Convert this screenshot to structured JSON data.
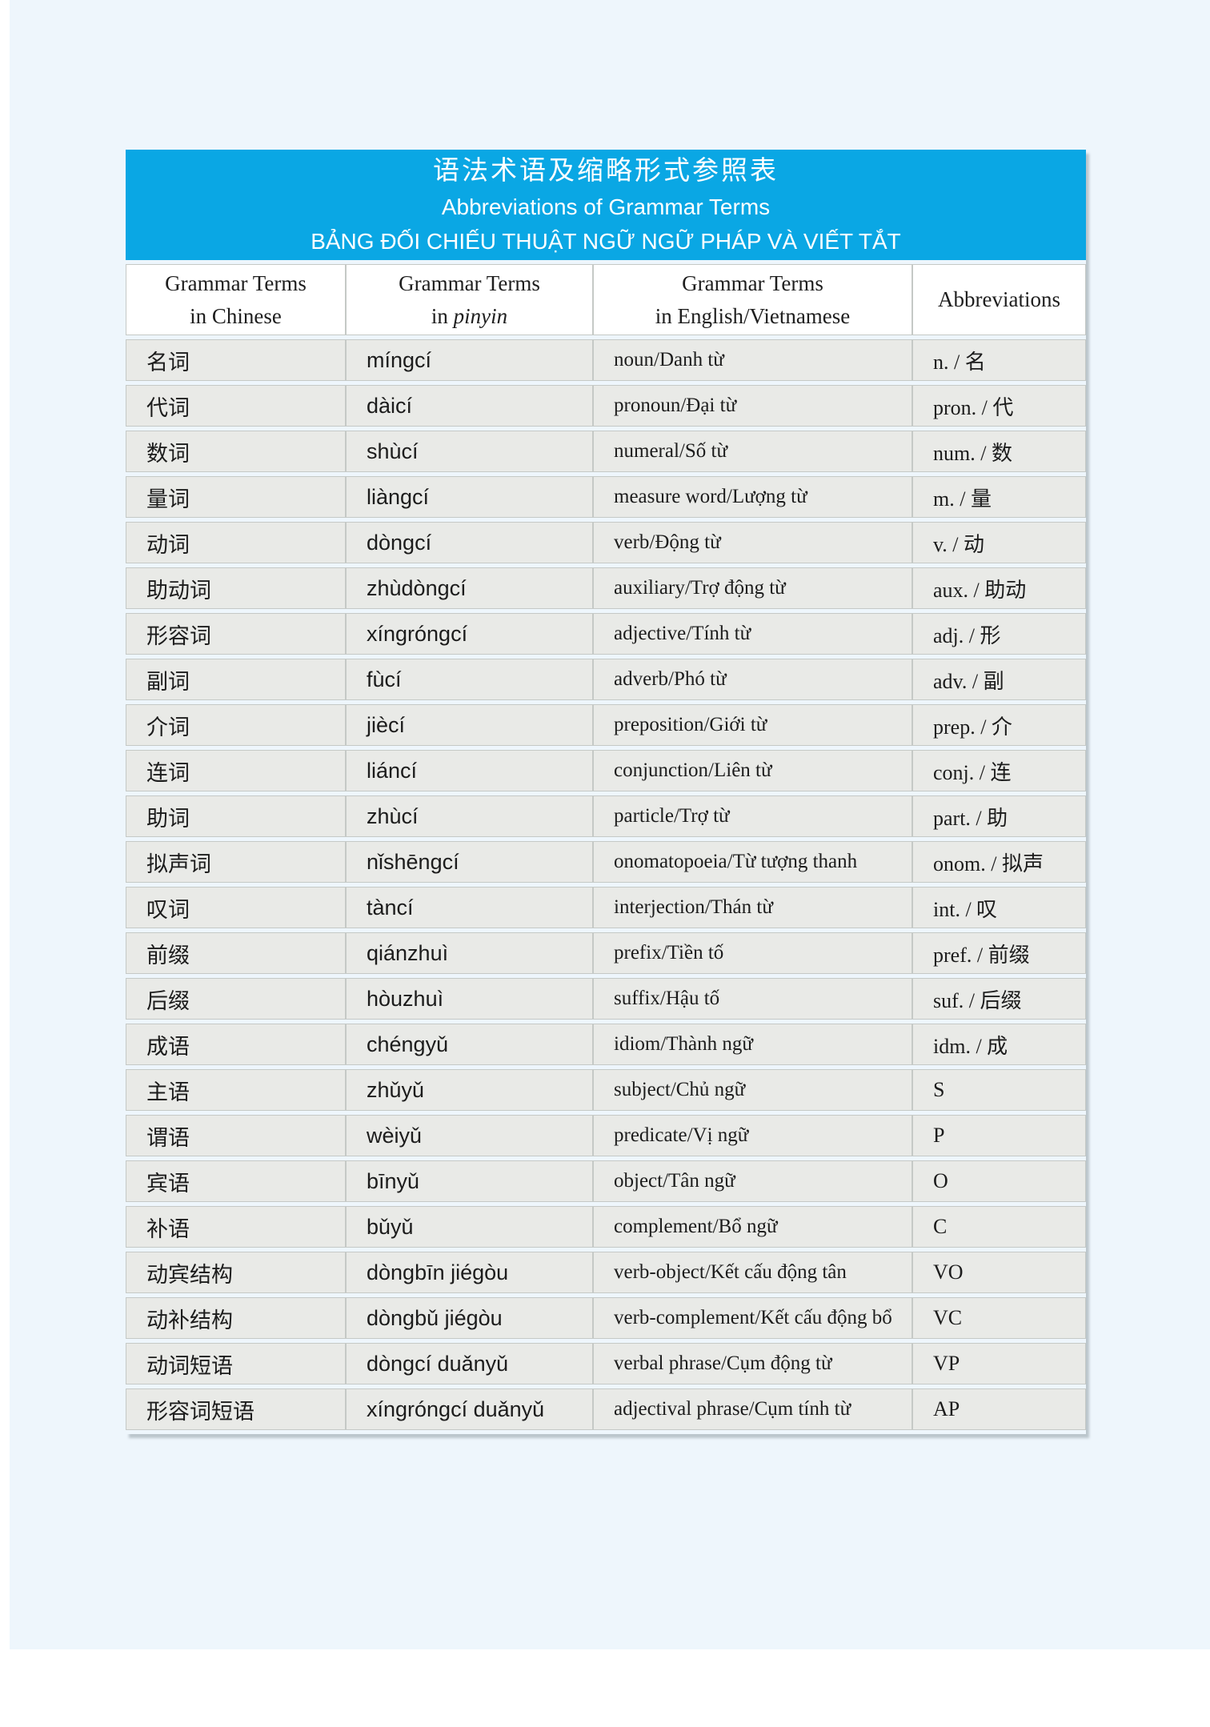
{
  "page": {
    "title_zh": "语法术语及缩略形式参照表",
    "title_en": "Abbreviations of Grammar Terms",
    "title_vi": "BẢNG ĐỐI CHIẾU THUẬT NGỮ NGỮ PHÁP VÀ VIẾT TẮT"
  },
  "colors": {
    "banner_blue": "#0aa7e4",
    "page_tint": "#eef6fc",
    "row_gray": "#e9eae7",
    "cell_border": "#c5c9c6"
  },
  "table": {
    "columns": [
      {
        "line1": "Grammar Terms",
        "line2": "in Chinese",
        "line2_italic": ""
      },
      {
        "line1": "Grammar Terms",
        "line2": "in ",
        "line2_italic": "pinyin"
      },
      {
        "line1": "Grammar Terms",
        "line2": "in English/Vietnamese",
        "line2_italic": ""
      },
      {
        "line1": "Abbreviations",
        "line2": "",
        "line2_italic": ""
      }
    ],
    "rows": [
      {
        "zh": "名词",
        "pinyin": "míngcí",
        "en_vi": "noun/Danh từ",
        "abbr": "n. / 名"
      },
      {
        "zh": "代词",
        "pinyin": "dàicí",
        "en_vi": "pronoun/Đại từ",
        "abbr": "pron. / 代"
      },
      {
        "zh": "数词",
        "pinyin": "shùcí",
        "en_vi": "numeral/Số từ",
        "abbr": "num. / 数"
      },
      {
        "zh": "量词",
        "pinyin": "liàngcí",
        "en_vi": "measure word/Lượng từ",
        "abbr": "m. / 量"
      },
      {
        "zh": "动词",
        "pinyin": "dòngcí",
        "en_vi": "verb/Động từ",
        "abbr": "v. / 动"
      },
      {
        "zh": "助动词",
        "pinyin": "zhùdòngcí",
        "en_vi": "auxiliary/Trợ động từ",
        "abbr": "aux. / 助动"
      },
      {
        "zh": "形容词",
        "pinyin": "xíngróngcí",
        "en_vi": "adjective/Tính từ",
        "abbr": "adj. / 形"
      },
      {
        "zh": "副词",
        "pinyin": "fùcí",
        "en_vi": "adverb/Phó từ",
        "abbr": "adv. / 副"
      },
      {
        "zh": "介词",
        "pinyin": "jiècí",
        "en_vi": "preposition/Giới từ",
        "abbr": "prep. / 介"
      },
      {
        "zh": "连词",
        "pinyin": "liáncí",
        "en_vi": "conjunction/Liên từ",
        "abbr": "conj. / 连"
      },
      {
        "zh": "助词",
        "pinyin": "zhùcí",
        "en_vi": "particle/Trợ từ",
        "abbr": "part. / 助"
      },
      {
        "zh": "拟声词",
        "pinyin": "nǐshēngcí",
        "en_vi": "onomatopoeia/Từ tượng thanh",
        "abbr": "onom. / 拟声"
      },
      {
        "zh": "叹词",
        "pinyin": "tàncí",
        "en_vi": "interjection/Thán từ",
        "abbr": "int. / 叹"
      },
      {
        "zh": "前缀",
        "pinyin": "qiánzhuì",
        "en_vi": "prefix/Tiền tố",
        "abbr": "pref. / 前缀"
      },
      {
        "zh": "后缀",
        "pinyin": "hòuzhuì",
        "en_vi": "suffix/Hậu tố",
        "abbr": "suf. / 后缀"
      },
      {
        "zh": "成语",
        "pinyin": "chéngyǔ",
        "en_vi": "idiom/Thành ngữ",
        "abbr": "idm. / 成"
      },
      {
        "zh": "主语",
        "pinyin": "zhǔyǔ",
        "en_vi": "subject/Chủ ngữ",
        "abbr": "S"
      },
      {
        "zh": "谓语",
        "pinyin": "wèiyǔ",
        "en_vi": "predicate/Vị ngữ",
        "abbr": "P"
      },
      {
        "zh": "宾语",
        "pinyin": "bīnyǔ",
        "en_vi": "object/Tân ngữ",
        "abbr": "O"
      },
      {
        "zh": "补语",
        "pinyin": "bǔyǔ",
        "en_vi": "complement/Bổ ngữ",
        "abbr": "C"
      },
      {
        "zh": "动宾结构",
        "pinyin": "dòngbīn jiégòu",
        "en_vi": "verb-object/Kết cấu động tân",
        "abbr": "VO"
      },
      {
        "zh": "动补结构",
        "pinyin": "dòngbǔ jiégòu",
        "en_vi": "verb-complement/Kết cấu động bổ",
        "abbr": "VC"
      },
      {
        "zh": "动词短语",
        "pinyin": "dòngcí duǎnyǔ",
        "en_vi": "verbal phrase/Cụm động từ",
        "abbr": "VP"
      },
      {
        "zh": "形容词短语",
        "pinyin": "xíngróngcí duǎnyǔ",
        "en_vi": "adjectival phrase/Cụm tính từ",
        "abbr": "AP"
      }
    ]
  }
}
